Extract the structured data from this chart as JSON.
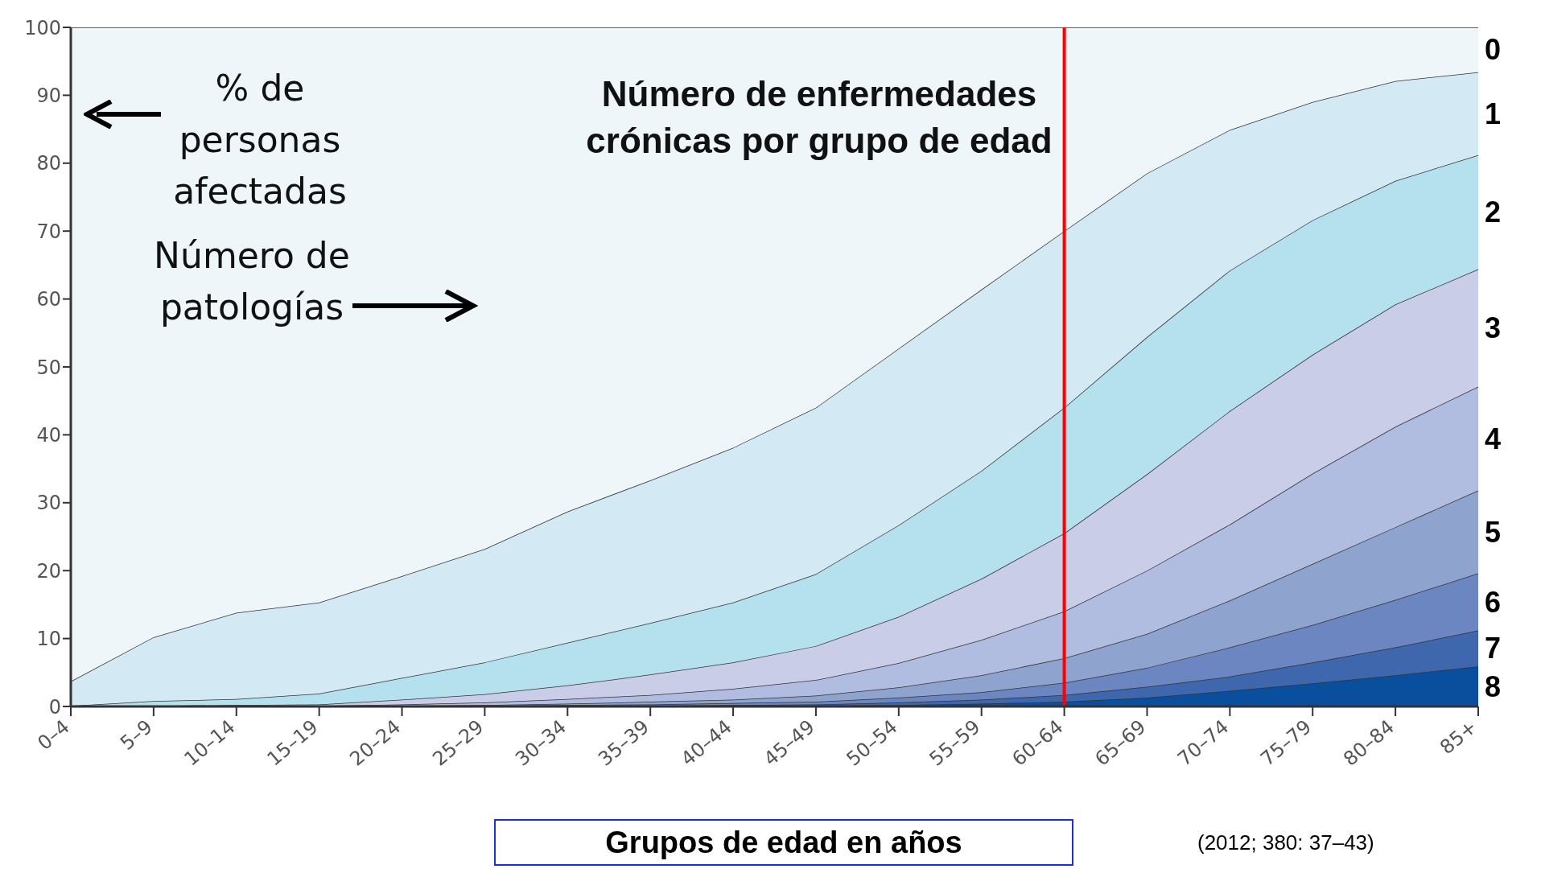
{
  "chart_data": {
    "type": "area",
    "stacked": true,
    "title": "Número de enfermedades crónicas por grupo de edad",
    "xlabel": "Grupos de edad en años",
    "categories": [
      "0–4",
      "5–9",
      "10–14",
      "15–19",
      "20–24",
      "25–29",
      "30–34",
      "35–39",
      "40–44",
      "45–49",
      "50–54",
      "55–59",
      "60–64",
      "65–69",
      "70–74",
      "75–79",
      "80–84",
      "85+"
    ],
    "series": [
      {
        "name": "8",
        "color": "#0a4f9e",
        "values": [
          0,
          0,
          0,
          0,
          0,
          0,
          0,
          0,
          0.1,
          0.1,
          0.2,
          0.4,
          0.7,
          1.3,
          2.3,
          3.4,
          4.6,
          5.9
        ]
      },
      {
        "name": "7",
        "color": "#3e67ad",
        "values": [
          0,
          0,
          0,
          0,
          0,
          0,
          0.1,
          0.1,
          0.1,
          0.2,
          0.4,
          0.6,
          1.0,
          1.6,
          2.1,
          3.1,
          4.1,
          5.3
        ]
      },
      {
        "name": "6",
        "color": "#6b86c0",
        "values": [
          0,
          0,
          0,
          0,
          0,
          0.1,
          0.1,
          0.2,
          0.3,
          0.4,
          0.7,
          1.1,
          1.8,
          2.8,
          4.3,
          5.5,
          7.0,
          8.4
        ]
      },
      {
        "name": "5",
        "color": "#8fa3cf",
        "values": [
          0,
          0,
          0,
          0,
          0.1,
          0.1,
          0.2,
          0.4,
          0.5,
          0.9,
          1.5,
          2.5,
          3.6,
          5.0,
          6.9,
          9.0,
          10.7,
          12.2
        ]
      },
      {
        "name": "4",
        "color": "#b0bde0",
        "values": [
          0,
          0,
          0,
          0.1,
          0.2,
          0.4,
          0.7,
          1.0,
          1.6,
          2.3,
          3.6,
          5.2,
          6.9,
          9.3,
          11.2,
          13.3,
          14.8,
          15.3
        ]
      },
      {
        "name": "3",
        "color": "#c9cde8",
        "values": [
          0,
          0.1,
          0.2,
          0.2,
          0.7,
          1.2,
          2.0,
          3.0,
          3.9,
          5.0,
          6.8,
          9.0,
          11.5,
          14.2,
          16.7,
          17.5,
          18.0,
          17.3
        ]
      },
      {
        "name": "2",
        "color": "#b5e0ee",
        "values": [
          0.1,
          0.7,
          0.9,
          1.6,
          3.2,
          4.7,
          6.3,
          7.6,
          8.8,
          10.6,
          13.5,
          15.9,
          18.5,
          20.2,
          20.7,
          19.8,
          18.2,
          16.8
        ]
      },
      {
        "name": "1",
        "color": "#d3eaf4",
        "values": [
          3.6,
          9.4,
          12.7,
          13.4,
          15.0,
          16.7,
          19.3,
          21.0,
          22.8,
          24.5,
          26.0,
          26.7,
          26.0,
          24.1,
          20.7,
          17.4,
          14.7,
          12.2
        ]
      },
      {
        "name": "0",
        "color": "#eef6fa",
        "values": [
          96.3,
          89.8,
          86.2,
          84.7,
          80.8,
          76.8,
          71.3,
          66.7,
          61.9,
          56.0,
          47.3,
          38.6,
          30.0,
          21.5,
          15.1,
          11.0,
          7.9,
          6.6
        ]
      }
    ],
    "ylim": [
      0,
      100
    ],
    "yticks": [
      0,
      10,
      20,
      30,
      40,
      50,
      60,
      70,
      80,
      90,
      100
    ],
    "grid": false,
    "legend": false,
    "ref_lines": [
      {
        "axis": "x",
        "value": "60–64",
        "color": "#ff0000"
      }
    ],
    "annotations": [
      "% de personas afectadas",
      "Número de patologías",
      "(2012; 380: 37–43)"
    ]
  }
}
